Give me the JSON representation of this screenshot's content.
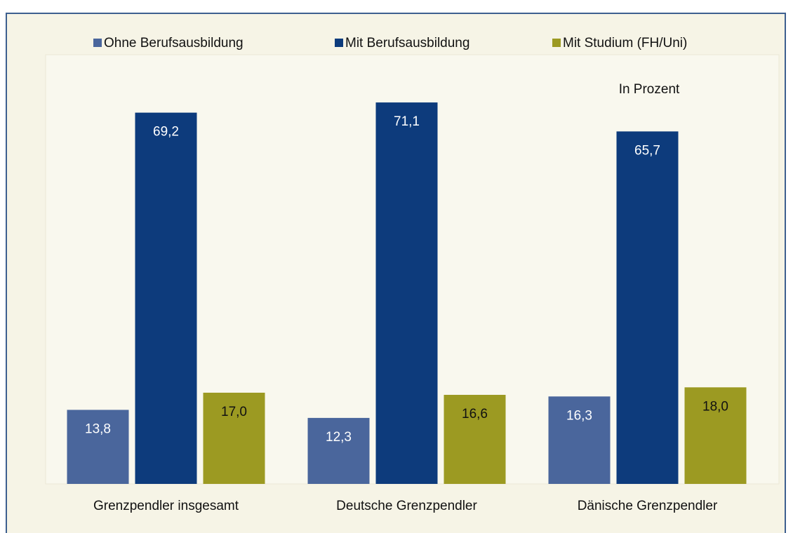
{
  "chart_data": {
    "type": "bar",
    "annotation": "In Prozent",
    "categories": [
      "Grenzpendler insgesamt",
      "Deutsche Grenzpendler",
      "Dänische Grenzpendler"
    ],
    "series": [
      {
        "name": "Ohne Berufsausbildung",
        "color": "#4a669c",
        "values": [
          13.8,
          12.3,
          16.3
        ],
        "value_labels": [
          "13,8",
          "12,3",
          "16,3"
        ]
      },
      {
        "name": "Mit Berufsausbildung",
        "color": "#0d3b7c",
        "values": [
          69.2,
          71.1,
          65.7
        ],
        "value_labels": [
          "69,2",
          "71,1",
          "65,7"
        ]
      },
      {
        "name": "Mit Studium (FH/Uni)",
        "color": "#9c9a22",
        "values": [
          17.0,
          16.6,
          18.0
        ],
        "value_labels": [
          "17,0",
          "16,6",
          "18,0"
        ]
      }
    ],
    "ylim": [
      0,
      80
    ],
    "legend": "top"
  }
}
